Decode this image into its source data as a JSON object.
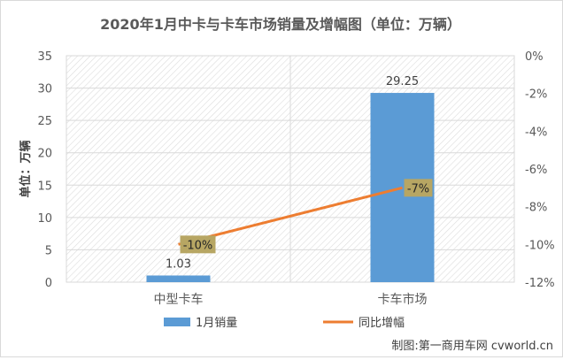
{
  "chart_data": {
    "type": "bar",
    "title": "2020年1月中卡与卡车市场销量及增幅图（单位：万辆）",
    "ylabel": "单位：万辆",
    "categories": [
      "中型卡车",
      "卡车市场"
    ],
    "ylim": [
      0,
      35
    ],
    "yticks": [
      0,
      5,
      10,
      15,
      20,
      25,
      30,
      35
    ],
    "y2lim": [
      -12,
      0
    ],
    "y2ticks": [
      0,
      -2,
      -4,
      -6,
      -8,
      -10,
      -12
    ],
    "y2tick_labels": [
      "0%",
      "-2%",
      "-4%",
      "-6%",
      "-8%",
      "-10%",
      "-12%"
    ],
    "series": [
      {
        "name": "1月销量",
        "type": "bar",
        "values": [
          1.03,
          29.25
        ],
        "labels": [
          "1.03",
          "29.25"
        ],
        "color": "#5b9bd5"
      },
      {
        "name": "同比增幅",
        "type": "line",
        "axis": "right",
        "values": [
          -10,
          -7
        ],
        "labels": [
          "-10%",
          "-7%"
        ],
        "color": "#ed7d31"
      }
    ],
    "label_box_color": "#b7a663",
    "grid": true,
    "legend": "bottom",
    "footer": "制图:第一商用车网 cvworld.cn"
  }
}
